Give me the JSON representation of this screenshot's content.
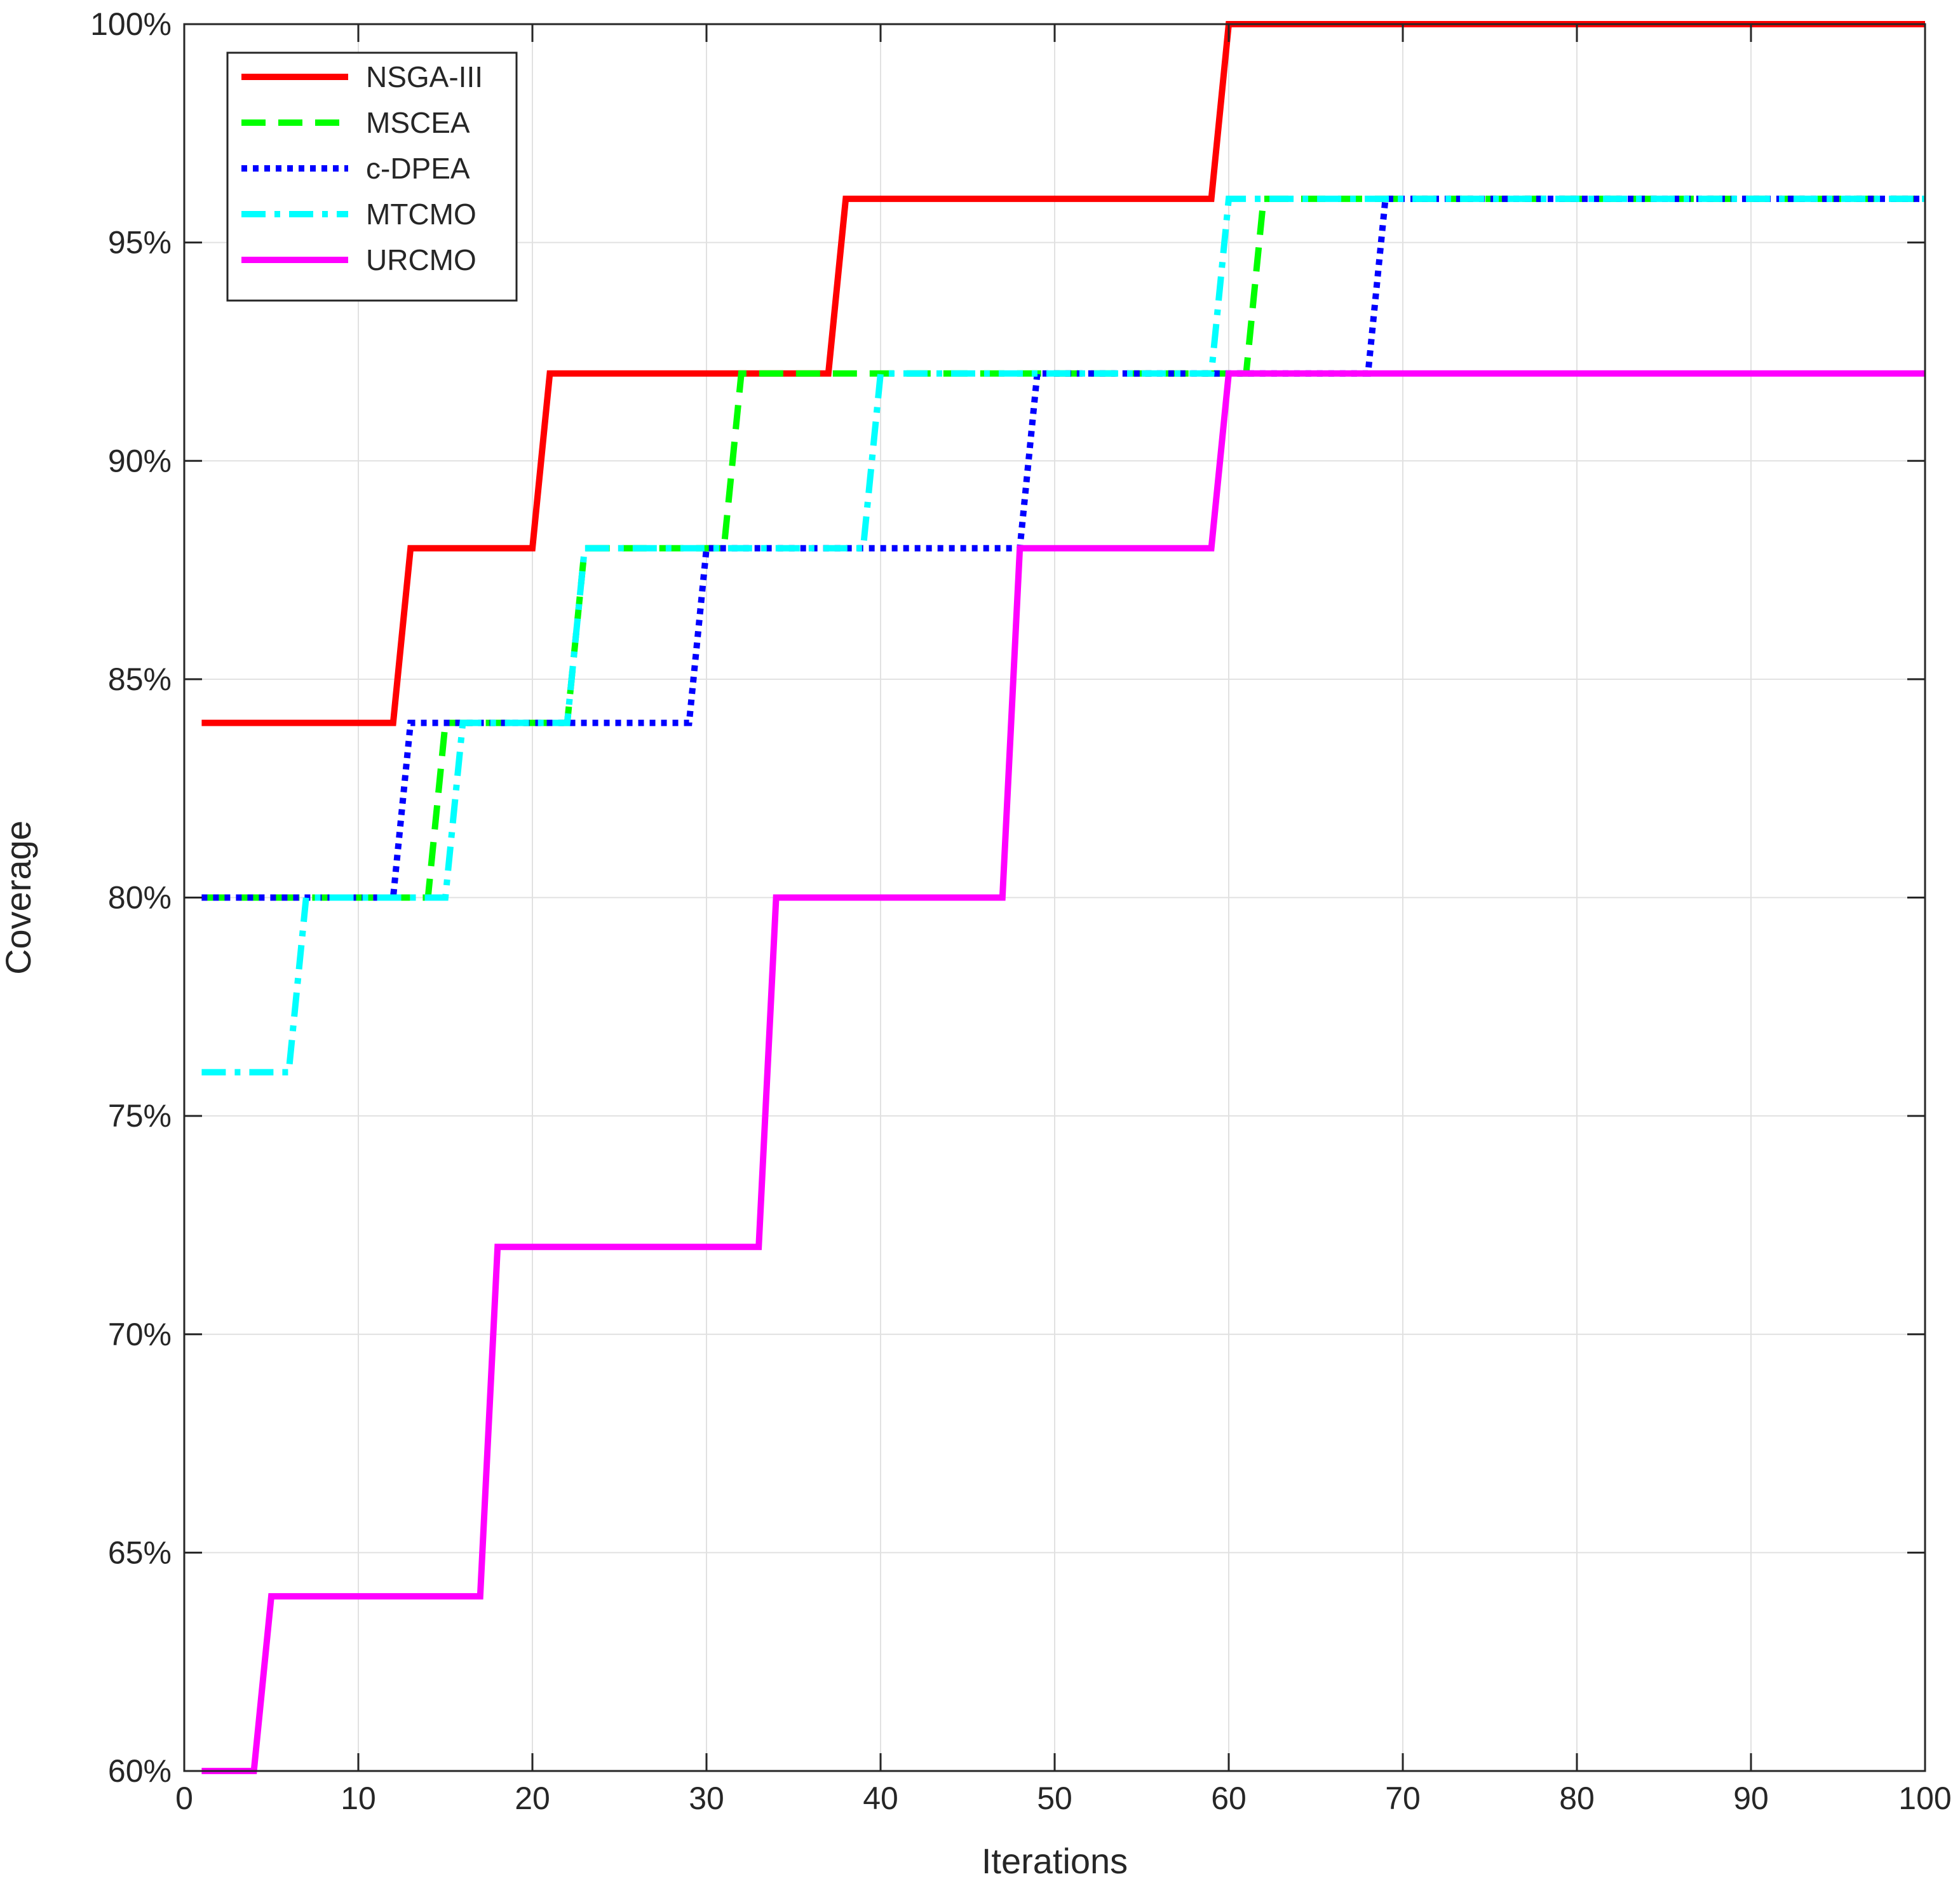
{
  "chart_data": {
    "type": "line",
    "title": "",
    "xlabel": "Iterations",
    "ylabel": "Coverage",
    "xlim": [
      0,
      100
    ],
    "ylim": [
      0.6,
      1.0
    ],
    "xticks": [
      0,
      10,
      20,
      30,
      40,
      50,
      60,
      70,
      80,
      90,
      100
    ],
    "xtick_labels": [
      "0",
      "10",
      "20",
      "30",
      "40",
      "50",
      "60",
      "70",
      "80",
      "90",
      "100"
    ],
    "yticks": [
      0.6,
      0.65,
      0.7,
      0.75,
      0.8,
      0.85,
      0.9,
      0.95,
      1.0
    ],
    "ytick_labels": [
      "60%",
      "65%",
      "70%",
      "75%",
      "80%",
      "85%",
      "90%",
      "95%",
      "100%"
    ],
    "grid": true,
    "legend_position": "top-left",
    "series": [
      {
        "name": "NSGA-III",
        "color": "#ff0000",
        "style": "solid",
        "x": [
          1,
          12,
          13,
          20,
          21,
          37,
          38,
          59,
          60,
          100
        ],
        "y": [
          0.84,
          0.84,
          0.88,
          0.88,
          0.92,
          0.92,
          0.96,
          0.96,
          1.0,
          1.0
        ]
      },
      {
        "name": "MSCEA",
        "color": "#00ff00",
        "style": "dashed",
        "x": [
          1,
          14,
          15,
          22,
          23,
          31,
          32,
          61,
          62,
          100
        ],
        "y": [
          0.8,
          0.8,
          0.84,
          0.84,
          0.88,
          0.88,
          0.92,
          0.92,
          0.96,
          0.96
        ]
      },
      {
        "name": "c-DPEA",
        "color": "#0000ff",
        "style": "dotted",
        "x": [
          1,
          12,
          13,
          29,
          30,
          48,
          49,
          68,
          69,
          100
        ],
        "y": [
          0.8,
          0.8,
          0.84,
          0.84,
          0.88,
          0.88,
          0.92,
          0.92,
          0.96,
          0.96
        ]
      },
      {
        "name": "MTCMO",
        "color": "#00ffff",
        "style": "dashdot",
        "x": [
          1,
          6,
          7,
          15,
          16,
          22,
          23,
          39,
          40,
          59,
          60,
          100
        ],
        "y": [
          0.76,
          0.76,
          0.8,
          0.8,
          0.84,
          0.84,
          0.88,
          0.88,
          0.92,
          0.92,
          0.96,
          0.96
        ]
      },
      {
        "name": "URCMO",
        "color": "#ff00ff",
        "style": "solid",
        "x": [
          1,
          4,
          5,
          17,
          18,
          33,
          34,
          47,
          48,
          59,
          60,
          100
        ],
        "y": [
          0.6,
          0.6,
          0.64,
          0.64,
          0.72,
          0.72,
          0.8,
          0.8,
          0.88,
          0.88,
          0.92,
          0.92
        ]
      }
    ]
  }
}
